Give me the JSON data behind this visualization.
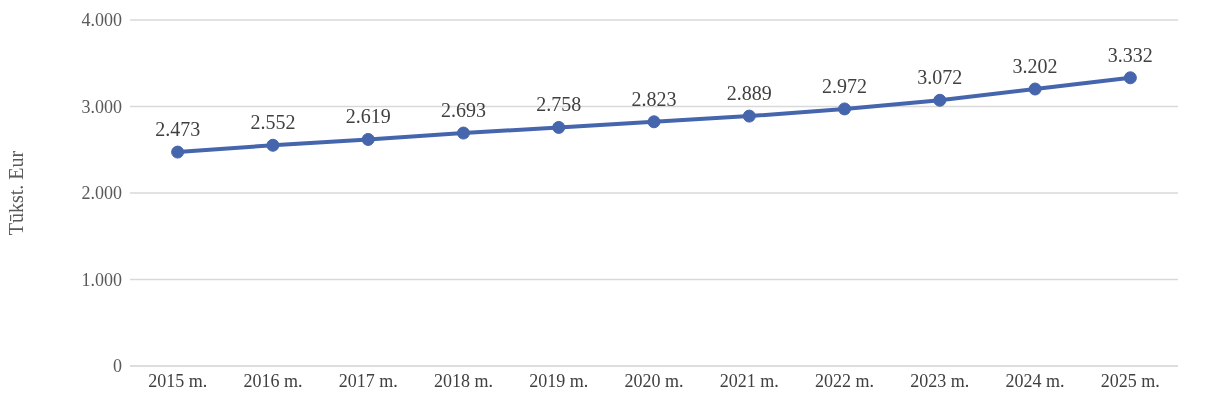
{
  "chart_data": {
    "type": "line",
    "ylabel": "Tūkst. Eur",
    "categories": [
      "2015 m.",
      "2016 m.",
      "2017 m.",
      "2018 m.",
      "2019 m.",
      "2020 m.",
      "2021 m.",
      "2022 m.",
      "2023 m.",
      "2024 m.",
      "2025 m."
    ],
    "series": [
      {
        "color": "#4565ad",
        "values": [
          2473,
          2552,
          2619,
          2693,
          2758,
          2823,
          2889,
          2972,
          3072,
          3202,
          3332
        ],
        "value_labels": [
          "2.473",
          "2.552",
          "2.619",
          "2.693",
          "2.758",
          "2.823",
          "2.889",
          "2.972",
          "3.072",
          "3.202",
          "3.332"
        ]
      }
    ],
    "ylim": [
      0,
      4000
    ],
    "yticks": [
      0,
      {
        "value": 1000,
        "label": "1.000"
      },
      {
        "value": 2000,
        "label": "2.000"
      },
      {
        "value": 3000,
        "label": "3.000"
      },
      {
        "value": 4000,
        "label": "4.000"
      }
    ],
    "grid": "y",
    "legend": false,
    "marker": "circle",
    "line_style": "solid"
  }
}
